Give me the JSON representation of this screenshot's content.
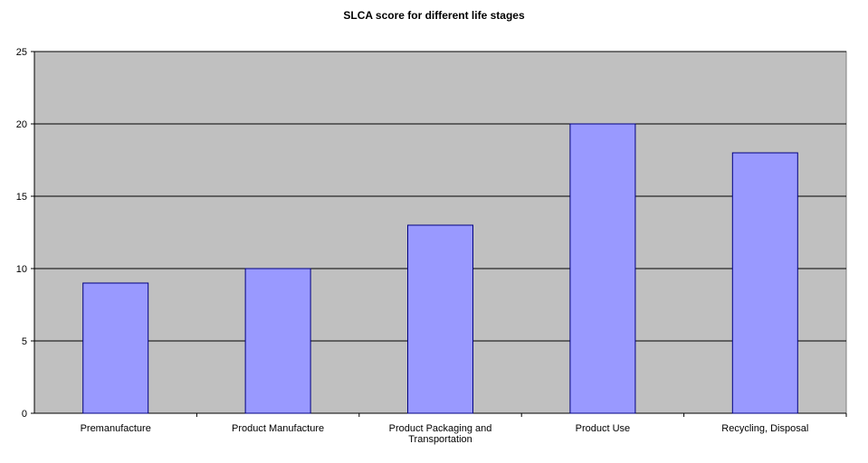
{
  "chart_data": {
    "type": "bar",
    "title": "SLCA score for different life stages",
    "xlabel": "",
    "ylabel": "",
    "categories": [
      "Premanufacture",
      "Product Manufacture",
      "Product Packaging and Transportation",
      "Product Use",
      "Recycling, Disposal"
    ],
    "values": [
      9,
      10,
      13,
      20,
      18
    ],
    "ylim": [
      0,
      25
    ],
    "yticks": [
      0,
      5,
      10,
      15,
      20,
      25
    ],
    "grid": true,
    "legend": "none",
    "colors": {
      "bar": "#9999ff",
      "bar_border": "#000080",
      "plot_background": "#c0c0c0",
      "grid": "#000000"
    }
  }
}
